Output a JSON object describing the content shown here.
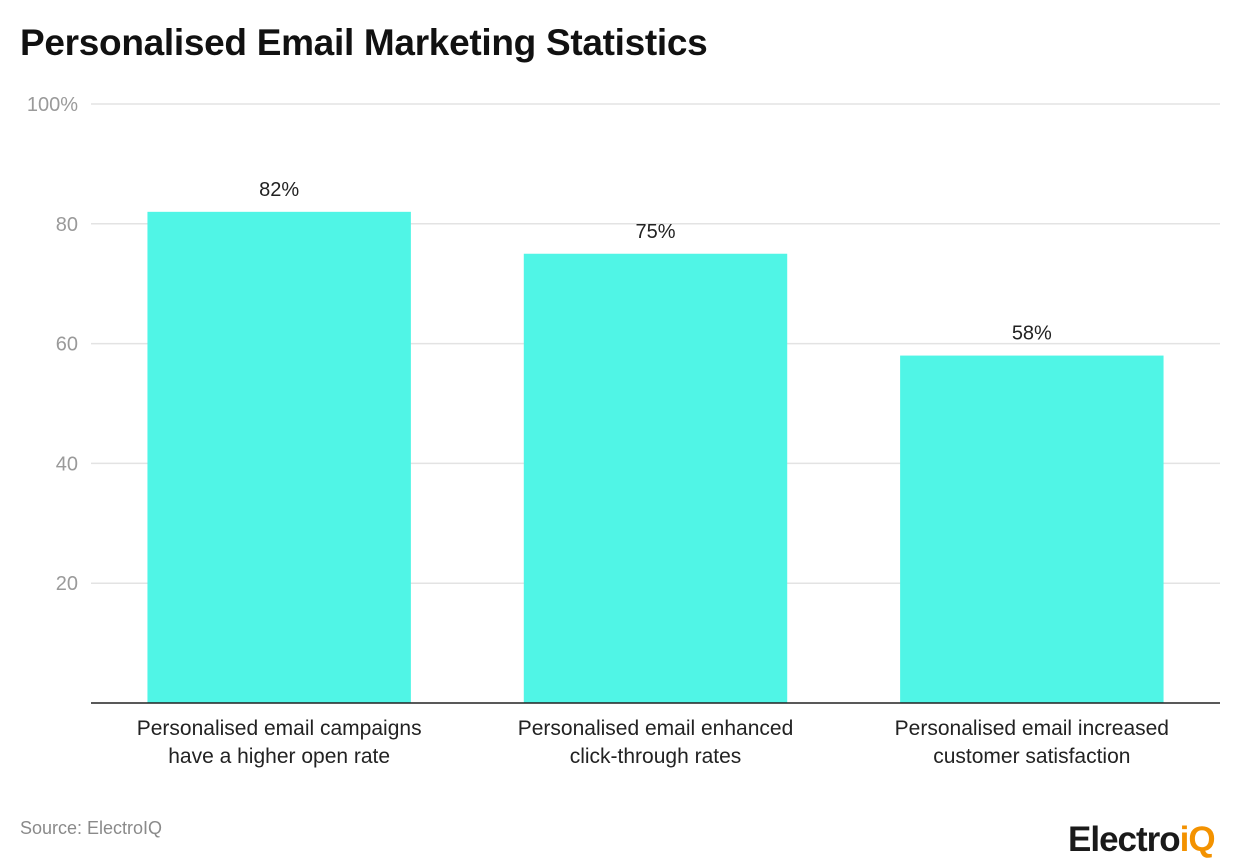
{
  "chart_data": {
    "type": "bar",
    "title": "Personalised Email Marketing Statistics",
    "categories": [
      [
        "Personalised email campaigns",
        "have a higher open rate"
      ],
      [
        "Personalised email enhanced",
        "click-through rates"
      ],
      [
        "Personalised email increased",
        "customer satisfaction"
      ]
    ],
    "values": [
      82,
      75,
      58
    ],
    "data_labels": [
      "82%",
      "75%",
      "58%"
    ],
    "ylim": [
      0,
      100
    ],
    "yticks": [
      20,
      40,
      60,
      80,
      100
    ],
    "ytick_labels": [
      "20",
      "40",
      "60",
      "80",
      "100%"
    ],
    "grid": true,
    "bar_color": "#50f5e6"
  },
  "source": "Source: ElectroIQ",
  "logo": {
    "text_main": "Electro",
    "text_accent": "iQ",
    "accent_color": "#f39200"
  }
}
